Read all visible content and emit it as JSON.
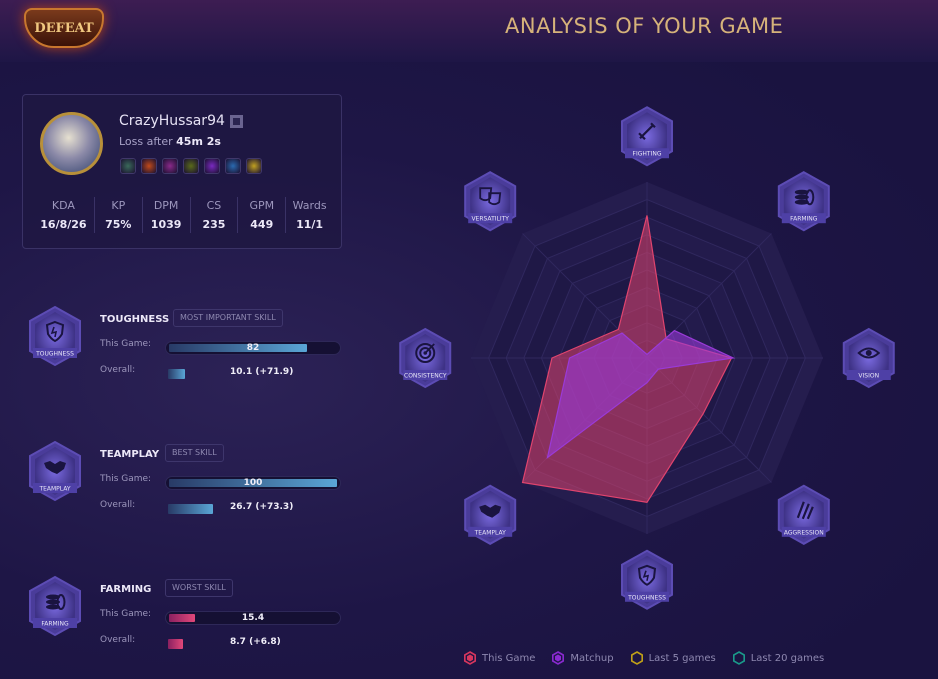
{
  "header": {
    "result_badge": "DEFEAT",
    "title": "ANALYSIS OF YOUR GAME"
  },
  "profile": {
    "name": "CrazyHussar94",
    "loss_prefix": "Loss after",
    "duration": "45m 2s",
    "items": [
      "#3a6a5a",
      "#c04a1a",
      "#8a2a8a",
      "#5a6a1a",
      "#7a2ac0",
      "#2a6ab0",
      "#c0a020"
    ],
    "stats": [
      {
        "label": "KDA",
        "value": "16/8/26"
      },
      {
        "label": "KP",
        "value": "75%"
      },
      {
        "label": "DPM",
        "value": "1039"
      },
      {
        "label": "CS",
        "value": "235"
      },
      {
        "label": "GPM",
        "value": "449"
      },
      {
        "label": "Wards",
        "value": "11/1"
      }
    ]
  },
  "skills": [
    {
      "name": "TOUGHNESS",
      "icon": "shield-icon",
      "tag": "MOST IMPORTANT SKILL",
      "this_label": "This Game:",
      "this_value": 82,
      "this_text": "82",
      "overall_label": "Overall:",
      "overall_value": 10.1,
      "overall_text": "10.1 (+71.9)",
      "color": "blue"
    },
    {
      "name": "TEAMPLAY",
      "icon": "handshake-icon",
      "tag": "BEST SKILL",
      "this_label": "This Game:",
      "this_value": 100,
      "this_text": "100",
      "overall_label": "Overall:",
      "overall_value": 26.7,
      "overall_text": "26.7 (+73.3)",
      "color": "blue"
    },
    {
      "name": "FARMING",
      "icon": "coins-icon",
      "tag": "WORST SKILL",
      "this_label": "This Game:",
      "this_value": 15.4,
      "this_text": "15.4",
      "overall_label": "Overall:",
      "overall_value": 8.7,
      "overall_text": "8.7 (+6.8)",
      "color": "pink"
    }
  ],
  "chart_data": {
    "type": "radar",
    "axes": [
      "FIGHTING",
      "FARMING",
      "VISION",
      "AGGRESSION",
      "TOUGHNESS",
      "TEAMPLAY",
      "CONSISTENCY",
      "VERSATILITY"
    ],
    "axis_icons": [
      "sword-icon",
      "coins-icon",
      "eye-icon",
      "claw-icon",
      "shield-icon",
      "handshake-icon",
      "target-icon",
      "masks-icon"
    ],
    "range": [
      0,
      100
    ],
    "series": [
      {
        "name": "This Game",
        "color": "#e0446e",
        "values": [
          81,
          15.4,
          48,
          45,
          82,
          100,
          54,
          23
        ]
      },
      {
        "name": "Matchup",
        "color": "#9a3ad8",
        "values": [
          2,
          22,
          49,
          9,
          14,
          80,
          44,
          20
        ]
      }
    ],
    "legend": [
      {
        "name": "This Game",
        "color": "#d8365e"
      },
      {
        "name": "Matchup",
        "color": "#8a2ad0"
      },
      {
        "name": "Last 5 games",
        "color": "#c0a018"
      },
      {
        "name": "Last 20 games",
        "color": "#1a9a8a"
      }
    ],
    "legend_position": "bottom"
  }
}
